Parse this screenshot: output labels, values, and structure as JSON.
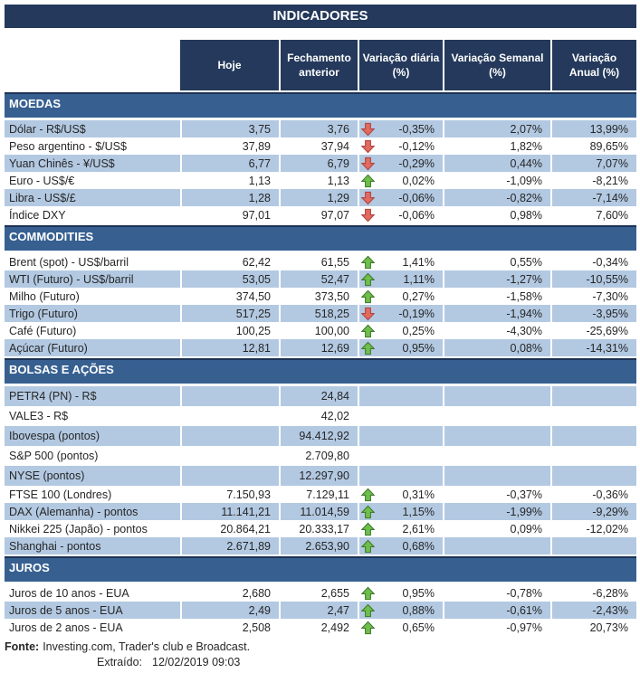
{
  "title": "INDICADORES",
  "chart_data": {
    "type": "table",
    "title": "INDICADORES",
    "columns": [
      "",
      "Hoje",
      "Fechamento anterior",
      "Variação diária (%)",
      "Variação Semanal (%)",
      "Variação Anual (%)"
    ],
    "header_display": {
      "hoje": "Hoje",
      "fechamento": "Fechamento\nanterior",
      "diaria": "Variação diária\n(%)",
      "semanal": "Variação Semanal\n(%)",
      "anual": "Variação\nAnual (%)"
    },
    "sections": [
      {
        "name": "MOEDAS",
        "rows": [
          {
            "label": "Dólar - R$/US$",
            "hoje": "3,75",
            "fechamento": "3,76",
            "arrow": "down",
            "diaria": "-0,35%",
            "semanal": "2,07%",
            "anual": "13,99%"
          },
          {
            "label": "Peso argentino - $/US$",
            "hoje": "37,89",
            "fechamento": "37,94",
            "arrow": "down",
            "diaria": "-0,12%",
            "semanal": "1,82%",
            "anual": "89,65%"
          },
          {
            "label": "Yuan Chinês - ¥/US$",
            "hoje": "6,77",
            "fechamento": "6,79",
            "arrow": "down",
            "diaria": "-0,29%",
            "semanal": "0,44%",
            "anual": "7,07%"
          },
          {
            "label": "Euro - US$/€",
            "hoje": "1,13",
            "fechamento": "1,13",
            "arrow": "up",
            "diaria": "0,02%",
            "semanal": "-1,09%",
            "anual": "-8,21%"
          },
          {
            "label": "Libra - US$/£",
            "hoje": "1,28",
            "fechamento": "1,29",
            "arrow": "down",
            "diaria": "-0,06%",
            "semanal": "-0,82%",
            "anual": "-7,14%"
          },
          {
            "label": "Índice DXY",
            "hoje": "97,01",
            "fechamento": "97,07",
            "arrow": "down",
            "diaria": "-0,06%",
            "semanal": "0,98%",
            "anual": "7,60%"
          }
        ]
      },
      {
        "name": "COMMODITIES",
        "rows": [
          {
            "label": "Brent (spot) - US$/barril",
            "hoje": "62,42",
            "fechamento": "61,55",
            "arrow": "up",
            "diaria": "1,41%",
            "semanal": "0,55%",
            "anual": "-0,34%"
          },
          {
            "label": "WTI (Futuro) - US$/barril",
            "hoje": "53,05",
            "fechamento": "52,47",
            "arrow": "up",
            "diaria": "1,11%",
            "semanal": "-1,27%",
            "anual": "-10,55%"
          },
          {
            "label": "Milho (Futuro)",
            "hoje": "374,50",
            "fechamento": "373,50",
            "arrow": "up",
            "diaria": "0,27%",
            "semanal": "-1,58%",
            "anual": "-7,30%"
          },
          {
            "label": "Trigo (Futuro)",
            "hoje": "517,25",
            "fechamento": "518,25",
            "arrow": "down",
            "diaria": "-0,19%",
            "semanal": "-1,94%",
            "anual": "-3,95%"
          },
          {
            "label": "Café (Futuro)",
            "hoje": "100,25",
            "fechamento": "100,00",
            "arrow": "up",
            "diaria": "0,25%",
            "semanal": "-4,30%",
            "anual": "-25,69%"
          },
          {
            "label": "Açúcar (Futuro)",
            "hoje": "12,81",
            "fechamento": "12,69",
            "arrow": "up",
            "diaria": "0,95%",
            "semanal": "0,08%",
            "anual": "-14,31%"
          }
        ]
      },
      {
        "name": "BOLSAS E AÇÕES",
        "rows": [
          {
            "label": "PETR4 (PN) - R$",
            "hoje": "",
            "fechamento": "24,84",
            "arrow": "",
            "diaria": "",
            "semanal": "",
            "anual": ""
          },
          {
            "label": "VALE3 - R$",
            "hoje": "",
            "fechamento": "42,02",
            "arrow": "",
            "diaria": "",
            "semanal": "",
            "anual": ""
          },
          {
            "label": "Ibovespa (pontos)",
            "hoje": "",
            "fechamento": "94.412,92",
            "arrow": "",
            "diaria": "",
            "semanal": "",
            "anual": ""
          },
          {
            "label": "S&P 500 (pontos)",
            "hoje": "",
            "fechamento": "2.709,80",
            "arrow": "",
            "diaria": "",
            "semanal": "",
            "anual": ""
          },
          {
            "label": "NYSE (pontos)",
            "hoje": "",
            "fechamento": "12.297,90",
            "arrow": "",
            "diaria": "",
            "semanal": "",
            "anual": ""
          },
          {
            "label": "FTSE 100 (Londres)",
            "hoje": "7.150,93",
            "fechamento": "7.129,11",
            "arrow": "up",
            "diaria": "0,31%",
            "semanal": "-0,37%",
            "anual": "-0,36%"
          },
          {
            "label": "DAX (Alemanha) - pontos",
            "hoje": "11.141,21",
            "fechamento": "11.014,59",
            "arrow": "up",
            "diaria": "1,15%",
            "semanal": "-1,99%",
            "anual": "-9,29%"
          },
          {
            "label": "Nikkei 225 (Japão) - pontos",
            "hoje": "20.864,21",
            "fechamento": "20.333,17",
            "arrow": "up",
            "diaria": "2,61%",
            "semanal": "0,09%",
            "anual": "-12,02%"
          },
          {
            "label": "Shanghai - pontos",
            "hoje": "2.671,89",
            "fechamento": "2.653,90",
            "arrow": "up",
            "diaria": "0,68%",
            "semanal": "",
            "anual": ""
          }
        ]
      },
      {
        "name": "JUROS",
        "rows": [
          {
            "label": "Juros de 10 anos - EUA",
            "hoje": "2,680",
            "fechamento": "2,655",
            "arrow": "up",
            "diaria": "0,95%",
            "semanal": "-0,78%",
            "anual": "-6,28%"
          },
          {
            "label": "Juros de 5 anos - EUA",
            "hoje": "2,49",
            "fechamento": "2,47",
            "arrow": "up",
            "diaria": "0,88%",
            "semanal": "-0,61%",
            "anual": "-2,43%"
          },
          {
            "label": "Juros de 2 anos - EUA",
            "hoje": "2,508",
            "fechamento": "2,492",
            "arrow": "up",
            "diaria": "0,65%",
            "semanal": "-0,97%",
            "anual": "20,73%"
          }
        ]
      }
    ]
  },
  "footer": {
    "fonte_label": "Fonte:",
    "fonte_text": "Investing.com, Trader's club e Broadcast.",
    "extraido_label": "Extraído:",
    "extraido_value": "12/02/2019 09:03"
  },
  "colors": {
    "header_bg": "#24395B",
    "section_bg": "#376091",
    "stripe_bg": "#B3C9E2",
    "section_top_border": "#1C3254",
    "arrow_up_fill": "#6EBE4B",
    "arrow_up_stroke": "#3F7A2D",
    "arrow_down_fill": "#E26A5E",
    "arrow_down_stroke": "#AE4540",
    "text": "#262626"
  },
  "icons": {
    "up": "up-arrow-icon",
    "down": "down-arrow-icon"
  }
}
